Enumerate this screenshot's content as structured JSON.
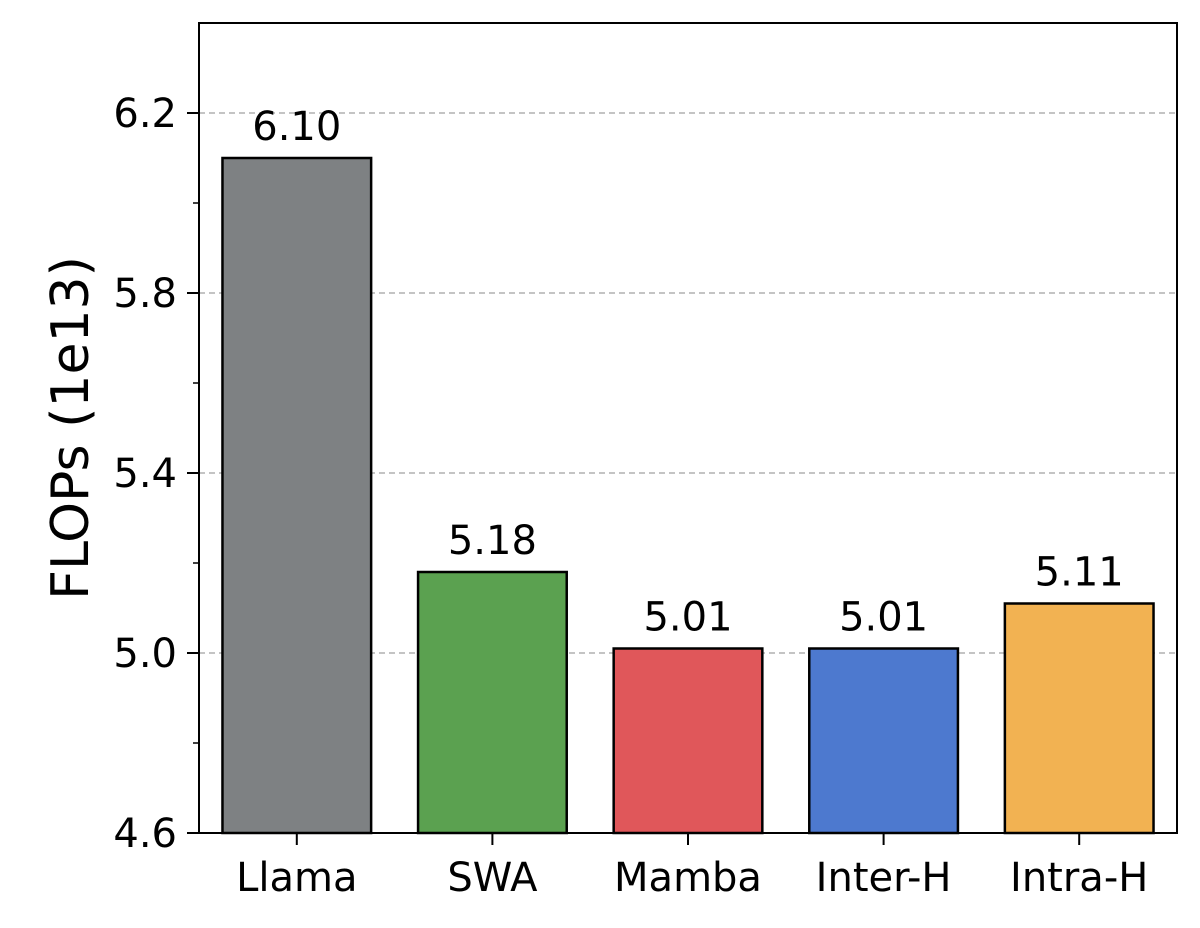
{
  "chart_data": {
    "type": "bar",
    "categories": [
      "Llama",
      "SWA",
      "Mamba",
      "Inter-H",
      "Intra-H"
    ],
    "values": [
      6.1,
      5.18,
      5.01,
      5.01,
      5.11
    ],
    "value_labels": [
      "6.10",
      "5.18",
      "5.01",
      "5.01",
      "5.11"
    ],
    "colors": [
      "#7e8183",
      "#5ba150",
      "#e0575a",
      "#4d79cf",
      "#f2b252"
    ],
    "xlabel": "",
    "ylabel": "FLOPs (1e13)",
    "ylim": [
      4.6,
      6.4
    ],
    "yticks": [
      4.6,
      5.0,
      5.4,
      5.8,
      6.2
    ],
    "ytick_labels": [
      "4.6",
      "5.0",
      "5.4",
      "5.8",
      "6.2"
    ],
    "minor_yticks": [
      4.8,
      5.2,
      5.6,
      6.0
    ],
    "grid": true,
    "grid_axis": "y",
    "grid_style": "dashed"
  }
}
